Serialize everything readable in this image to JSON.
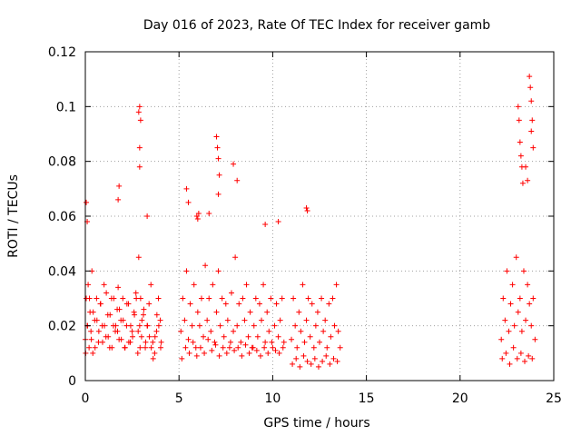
{
  "chart_data": {
    "type": "scatter",
    "title": "Day 016 of 2023, Rate Of TEC Index for receiver gamb",
    "xlabel": "GPS time / hours",
    "ylabel": "ROTI / TECUs",
    "xlim": [
      0,
      25
    ],
    "ylim": [
      0,
      0.12
    ],
    "x_ticks": [
      0,
      5,
      10,
      15,
      20,
      25
    ],
    "x_tick_labels": [
      "0",
      "5",
      "10",
      "15",
      "20",
      "25"
    ],
    "y_ticks": [
      0,
      0.02,
      0.04,
      0.06,
      0.08,
      0.1,
      0.12
    ],
    "y_tick_labels": [
      "0",
      "0.02",
      "0.04",
      "0.06",
      "0.08",
      "0.1",
      "0.12"
    ],
    "grid": true,
    "marker": "+",
    "color": "#ff0000",
    "series": [
      {
        "x": [
          0.0,
          0.05,
          0.1,
          0.15,
          0.2,
          0.25,
          0.3,
          0.35,
          0.4,
          0.5,
          0.6,
          0.7,
          0.8,
          0.9,
          1.0,
          1.1,
          1.2,
          1.3,
          1.4,
          1.5,
          1.6,
          1.7,
          1.75,
          1.8,
          1.9,
          2.0,
          2.1,
          2.2,
          2.3,
          2.4,
          2.5,
          2.6,
          2.7,
          2.8,
          2.85,
          2.9,
          2.95,
          3.0,
          3.1,
          3.2,
          3.3,
          3.4,
          3.5,
          3.6,
          3.7,
          3.8,
          3.9,
          4.0,
          4.05,
          0.02,
          0.12,
          0.22,
          0.32,
          0.42,
          0.52,
          0.62,
          0.72,
          0.82,
          0.92,
          1.02,
          1.12,
          1.22,
          1.32,
          1.42,
          1.52,
          1.62,
          1.72,
          1.82,
          1.92,
          2.02,
          2.12,
          2.22,
          2.32,
          2.42,
          2.52,
          2.62,
          2.72,
          2.82,
          2.92,
          3.02,
          3.12,
          3.22,
          3.32,
          3.42,
          3.52,
          3.62,
          3.72,
          3.82,
          3.92,
          4.02,
          5.1,
          5.2,
          5.3,
          5.4,
          5.5,
          5.6,
          5.7,
          5.8,
          5.9,
          6.0,
          6.1,
          6.2,
          6.3,
          6.4,
          6.5,
          6.6,
          6.7,
          6.8,
          6.9,
          7.0,
          7.1,
          7.2,
          7.3,
          7.4,
          7.5,
          7.6,
          7.7,
          7.8,
          7.9,
          8.0,
          8.1,
          8.2,
          8.3,
          8.4,
          8.5,
          8.6,
          8.7,
          8.8,
          8.9,
          9.0,
          9.1,
          9.2,
          9.3,
          9.4,
          9.5,
          9.6,
          9.7,
          9.8,
          9.9,
          10.0,
          10.1,
          10.2,
          10.3,
          10.4,
          10.5,
          10.6,
          5.15,
          5.35,
          5.55,
          5.75,
          5.95,
          6.15,
          6.35,
          6.55,
          6.75,
          6.95,
          7.15,
          7.35,
          7.55,
          7.75,
          7.95,
          8.15,
          8.35,
          8.55,
          8.75,
          8.95,
          9.15,
          9.35,
          9.55,
          9.75,
          9.95,
          10.15,
          10.35,
          10.55,
          11.0,
          11.1,
          11.2,
          11.3,
          11.4,
          11.5,
          11.6,
          11.7,
          11.8,
          11.9,
          12.0,
          12.1,
          12.2,
          12.3,
          12.4,
          12.5,
          12.6,
          12.7,
          12.8,
          12.9,
          13.0,
          13.1,
          13.2,
          13.3,
          13.4,
          13.5,
          13.6,
          11.05,
          11.25,
          11.45,
          11.65,
          11.85,
          12.05,
          12.25,
          12.45,
          12.65,
          12.85,
          13.05,
          13.25,
          13.45,
          22.2,
          22.3,
          22.4,
          22.5,
          22.6,
          22.7,
          22.8,
          22.9,
          23.0,
          23.1,
          23.2,
          23.3,
          23.4,
          23.5,
          23.6,
          23.7,
          23.8,
          23.9,
          24.0,
          22.25,
          22.45,
          22.65,
          22.85,
          23.05,
          23.25,
          23.45,
          23.65,
          23.85,
          0.05,
          0.1,
          1.8,
          1.75,
          2.9,
          2.85,
          2.95,
          2.9,
          2.9,
          3.3,
          5.4,
          5.5,
          5.95,
          6.0,
          6.05,
          6.6,
          7.0,
          7.05,
          7.1,
          7.15,
          7.1,
          7.9,
          8.1,
          9.6,
          10.3,
          11.8,
          11.85,
          23.1,
          23.15,
          23.2,
          23.25,
          23.3,
          23.35,
          23.7,
          23.75,
          23.8,
          23.85,
          23.8,
          23.9,
          23.5,
          23.6
        ],
        "y": [
          0.015,
          0.03,
          0.02,
          0.035,
          0.012,
          0.025,
          0.018,
          0.04,
          0.01,
          0.022,
          0.03,
          0.014,
          0.028,
          0.02,
          0.035,
          0.016,
          0.024,
          0.012,
          0.03,
          0.02,
          0.018,
          0.026,
          0.034,
          0.015,
          0.022,
          0.03,
          0.012,
          0.02,
          0.028,
          0.014,
          0.018,
          0.025,
          0.032,
          0.01,
          0.045,
          0.02,
          0.03,
          0.016,
          0.024,
          0.012,
          0.02,
          0.028,
          0.035,
          0.014,
          0.01,
          0.018,
          0.03,
          0.022,
          0.014,
          0.01,
          0.02,
          0.03,
          0.015,
          0.025,
          0.012,
          0.022,
          0.018,
          0.028,
          0.014,
          0.02,
          0.032,
          0.016,
          0.024,
          0.012,
          0.03,
          0.02,
          0.018,
          0.026,
          0.015,
          0.022,
          0.012,
          0.028,
          0.014,
          0.02,
          0.016,
          0.024,
          0.03,
          0.018,
          0.012,
          0.022,
          0.026,
          0.014,
          0.02,
          0.016,
          0.012,
          0.008,
          0.016,
          0.024,
          0.02,
          0.012,
          0.018,
          0.03,
          0.022,
          0.04,
          0.015,
          0.028,
          0.02,
          0.035,
          0.012,
          0.025,
          0.02,
          0.03,
          0.016,
          0.042,
          0.022,
          0.03,
          0.018,
          0.035,
          0.014,
          0.025,
          0.04,
          0.02,
          0.03,
          0.016,
          0.028,
          0.022,
          0.012,
          0.032,
          0.018,
          0.045,
          0.02,
          0.028,
          0.014,
          0.03,
          0.022,
          0.035,
          0.016,
          0.025,
          0.012,
          0.02,
          0.03,
          0.016,
          0.028,
          0.022,
          0.035,
          0.014,
          0.025,
          0.018,
          0.03,
          0.012,
          0.02,
          0.028,
          0.016,
          0.022,
          0.03,
          0.014,
          0.008,
          0.012,
          0.01,
          0.014,
          0.009,
          0.012,
          0.01,
          0.015,
          0.011,
          0.013,
          0.009,
          0.012,
          0.01,
          0.014,
          0.011,
          0.012,
          0.009,
          0.013,
          0.01,
          0.012,
          0.011,
          0.009,
          0.012,
          0.01,
          0.014,
          0.011,
          0.01,
          0.012,
          0.015,
          0.03,
          0.02,
          0.012,
          0.025,
          0.018,
          0.035,
          0.014,
          0.022,
          0.03,
          0.016,
          0.028,
          0.012,
          0.02,
          0.025,
          0.014,
          0.03,
          0.018,
          0.022,
          0.012,
          0.028,
          0.016,
          0.03,
          0.02,
          0.035,
          0.018,
          0.012,
          0.006,
          0.008,
          0.005,
          0.009,
          0.007,
          0.006,
          0.008,
          0.005,
          0.007,
          0.009,
          0.006,
          0.008,
          0.007,
          0.015,
          0.03,
          0.022,
          0.04,
          0.018,
          0.028,
          0.035,
          0.02,
          0.045,
          0.025,
          0.03,
          0.018,
          0.04,
          0.022,
          0.035,
          0.028,
          0.02,
          0.03,
          0.015,
          0.008,
          0.01,
          0.006,
          0.012,
          0.008,
          0.01,
          0.007,
          0.009,
          0.008,
          0.065,
          0.058,
          0.071,
          0.066,
          0.1,
          0.098,
          0.095,
          0.085,
          0.078,
          0.06,
          0.07,
          0.065,
          0.06,
          0.059,
          0.061,
          0.061,
          0.089,
          0.085,
          0.081,
          0.075,
          0.068,
          0.079,
          0.073,
          0.057,
          0.058,
          0.063,
          0.062,
          0.1,
          0.095,
          0.087,
          0.082,
          0.078,
          0.072,
          0.111,
          0.107,
          0.102,
          0.095,
          0.091,
          0.085,
          0.078,
          0.073
        ]
      }
    ]
  }
}
